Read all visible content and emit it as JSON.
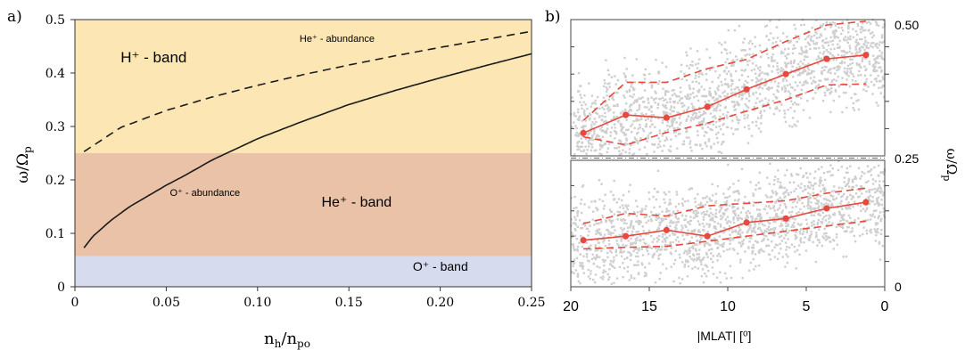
{
  "figure": {
    "panel_a_label": "a)",
    "panel_b_label": "b)"
  },
  "chart_data": [
    {
      "panel": "a)",
      "type": "line",
      "xlabel": "n_h/n_po",
      "ylabel": "ω/Ω_p",
      "xlim": [
        0,
        0.25
      ],
      "ylim": [
        0,
        0.5
      ],
      "xticks": [
        "0",
        "0.05",
        "0.10",
        "0.15",
        "0.20",
        "0.25"
      ],
      "yticks": [
        "0",
        "0.1",
        "0.2",
        "0.3",
        "0.4",
        "0.5"
      ],
      "grid": false,
      "bands": [
        {
          "label": "H⁺ - band",
          "y_range": [
            0.25,
            0.5
          ],
          "color": "#fbe6b4"
        },
        {
          "label": "He⁺ - band",
          "y_range": [
            0.057,
            0.25
          ],
          "color": "#eac2a7"
        },
        {
          "label": "O⁺ - band",
          "y_range": [
            0,
            0.057
          ],
          "color": "#d6dcee"
        }
      ],
      "series": [
        {
          "name": "He⁺ - abundance",
          "style": "dashed",
          "x": [
            0.005,
            0.025,
            0.05,
            0.075,
            0.1,
            0.125,
            0.15,
            0.175,
            0.2,
            0.225,
            0.25
          ],
          "y": [
            0.253,
            0.298,
            0.33,
            0.355,
            0.377,
            0.397,
            0.415,
            0.432,
            0.448,
            0.463,
            0.478
          ]
        },
        {
          "name": "O⁺ - abundance",
          "style": "solid",
          "x": [
            0.005,
            0.01,
            0.02,
            0.03,
            0.04,
            0.05,
            0.06,
            0.075,
            0.1,
            0.125,
            0.15,
            0.175,
            0.2,
            0.225,
            0.25
          ],
          "y": [
            0.073,
            0.095,
            0.125,
            0.15,
            0.17,
            0.19,
            0.208,
            0.237,
            0.277,
            0.31,
            0.341,
            0.367,
            0.391,
            0.414,
            0.436
          ]
        }
      ]
    },
    {
      "panel": "b)",
      "type": "scatter",
      "xlabel": "|MLAT| [⁰]",
      "ylabel": "ω/Ω_p",
      "xlim": [
        20,
        0
      ],
      "ylim": [
        0,
        0.5
      ],
      "xticks": [
        "20",
        "15",
        "10",
        "5",
        "0"
      ],
      "yticks": [
        "0",
        "0.25",
        "0.50"
      ],
      "background_points": "grey scatter",
      "subplots": [
        {
          "position": "top",
          "x": [
            19.2,
            16.5,
            13.9,
            11.3,
            8.8,
            6.3,
            3.7,
            1.2
          ],
          "median": [
            0.292,
            0.325,
            0.32,
            0.34,
            0.372,
            0.4,
            0.428,
            0.435
          ],
          "upper": [
            0.315,
            0.385,
            0.385,
            0.41,
            0.427,
            0.46,
            0.49,
            0.497
          ],
          "lower": [
            0.285,
            0.27,
            0.293,
            0.31,
            0.332,
            0.353,
            0.38,
            0.382
          ]
        },
        {
          "position": "bottom",
          "x": [
            19.2,
            16.5,
            13.9,
            11.3,
            8.8,
            6.3,
            3.7,
            1.2
          ],
          "median": [
            0.092,
            0.1,
            0.112,
            0.1,
            0.127,
            0.135,
            0.155,
            0.167
          ],
          "upper": [
            0.125,
            0.145,
            0.14,
            0.16,
            0.165,
            0.17,
            0.185,
            0.195
          ],
          "lower": [
            0.075,
            0.078,
            0.08,
            0.09,
            0.1,
            0.11,
            0.12,
            0.13
          ]
        }
      ]
    }
  ]
}
